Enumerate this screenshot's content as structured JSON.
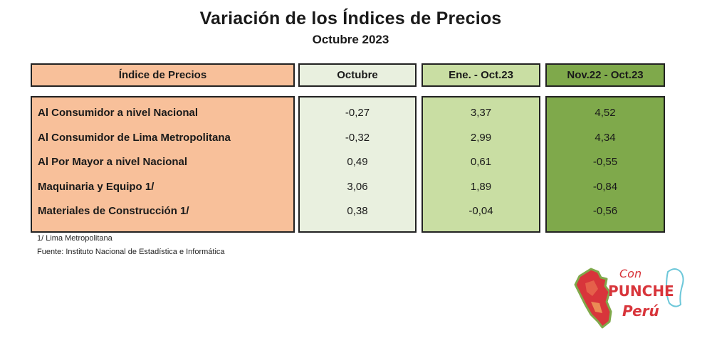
{
  "title": "Variación de los Índices de Precios",
  "subtitle": "Octubre 2023",
  "table": {
    "headers": [
      "Índice de Precios",
      "Octubre",
      "Ene. - Oct.23",
      "Nov.22 - Oct.23"
    ],
    "rows": [
      {
        "label": "Al Consumidor a nivel Nacional",
        "octubre": "-0,27",
        "ene_oct": "3,37",
        "nov_oct": "4,52"
      },
      {
        "label": "Al Consumidor de Lima Metropolitana",
        "octubre": "-0,32",
        "ene_oct": "2,99",
        "nov_oct": "4,34"
      },
      {
        "label": "Al Por Mayor a nivel Nacional",
        "octubre": "0,49",
        "ene_oct": "0,61",
        "nov_oct": "-0,55"
      },
      {
        "label": "Maquinaria y Equipo 1/",
        "octubre": "3,06",
        "ene_oct": "1,89",
        "nov_oct": "-0,84"
      },
      {
        "label": "Materiales de Construcción 1/",
        "octubre": "0,38",
        "ene_oct": "-0,04",
        "nov_oct": "-0,56"
      }
    ]
  },
  "footnotes": [
    "1/ Lima Metropolitana",
    "Fuente: Instituto Nacional de Estadística e Informática"
  ],
  "logo": {
    "line1": "Con",
    "line2": "PUNCHE",
    "line3": "Perú",
    "icon": "peru-map-icon"
  },
  "colors": {
    "orange": "#f8c09a",
    "pale_green": "#e9f0df",
    "light_green": "#c9dea3",
    "green": "#7fa94b",
    "logo_red": "#d8353b"
  }
}
